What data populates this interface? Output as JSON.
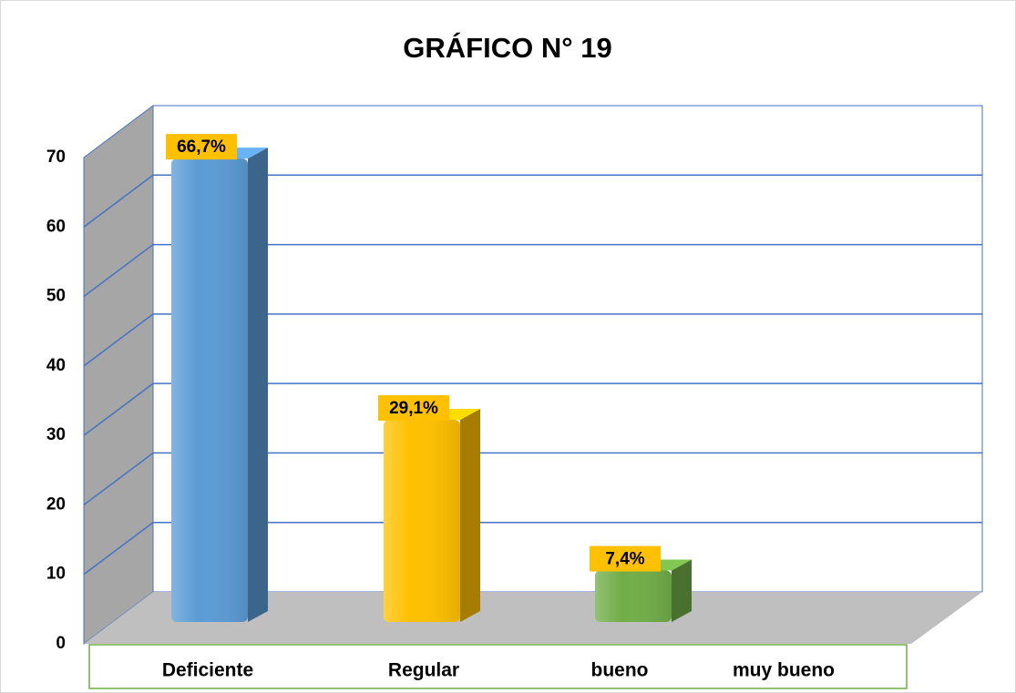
{
  "chart_data": {
    "type": "bar",
    "title": "GRÁFICO N° 19",
    "categories": [
      "Deficiente",
      "Regular",
      "bueno",
      "muy bueno"
    ],
    "values": [
      66.7,
      29.1,
      7.4,
      null
    ],
    "value_labels": [
      "66,7%",
      "29,1%",
      "7,4%",
      null
    ],
    "colors": [
      "#5b9bd5",
      "#ffc000",
      "#70ad47",
      "#a5a5a5"
    ],
    "ylim": [
      0,
      70
    ],
    "yticks": [
      0,
      10,
      20,
      30,
      40,
      50,
      60,
      70
    ],
    "grid": true
  }
}
